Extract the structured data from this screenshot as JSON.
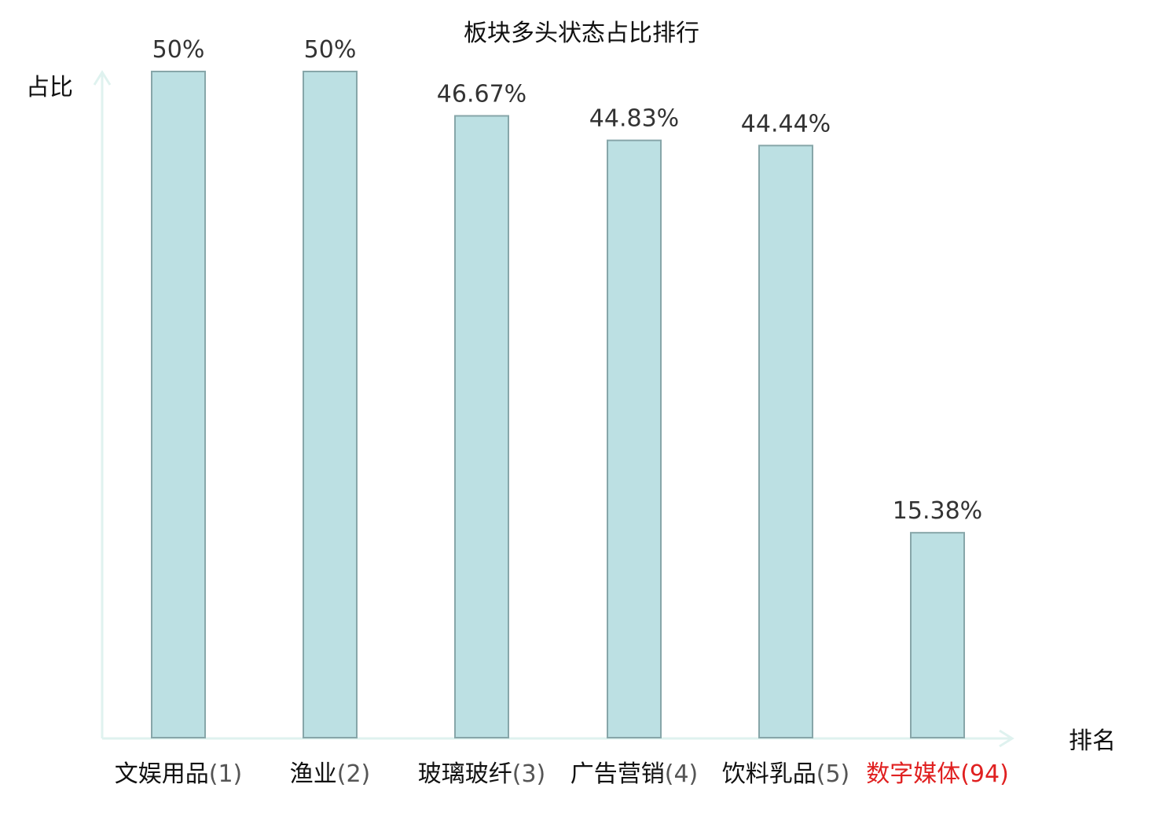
{
  "chart_data": {
    "type": "bar",
    "title": "板块多头状态占比排行",
    "xlabel": "排名",
    "ylabel": "占比",
    "ylim": [
      0,
      50
    ],
    "grid": false,
    "categories": [
      {
        "name": "文娱用品",
        "rank": "(1)"
      },
      {
        "name": "渔业",
        "rank": "(2)"
      },
      {
        "name": "玻璃玻纤",
        "rank": "(3)"
      },
      {
        "name": "广告营销",
        "rank": "(4)"
      },
      {
        "name": "饮料乳品",
        "rank": "(5)"
      },
      {
        "name": "数字媒体",
        "rank": "(94)",
        "highlight": true
      }
    ],
    "values": [
      50,
      50,
      46.67,
      44.83,
      44.44,
      15.38
    ],
    "value_labels": [
      "50%",
      "50%",
      "46.67%",
      "44.83%",
      "44.44%",
      "15.38%"
    ]
  },
  "colors": {
    "bar_fill": "#bce0e3",
    "bar_stroke": "#87a6a9",
    "axis": "#dff2ef",
    "label_name": "#111111",
    "label_rank": "#555555",
    "highlight": "#e02020"
  }
}
